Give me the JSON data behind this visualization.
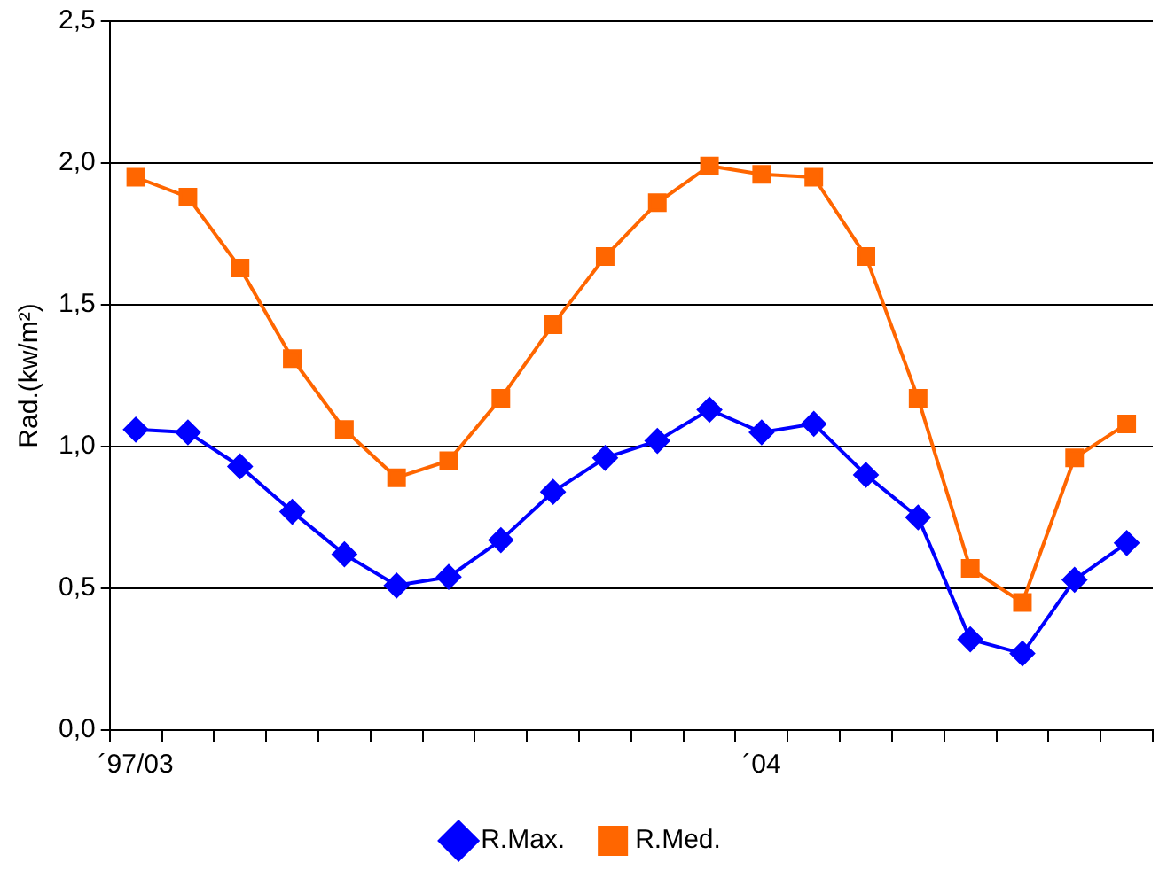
{
  "chart_data": {
    "type": "line",
    "ylabel": "Rad.(kw/m²)",
    "categories": [
      "´97/03",
      null,
      null,
      null,
      null,
      null,
      null,
      null,
      null,
      null,
      null,
      null,
      "´04",
      null,
      null,
      null,
      null,
      null,
      null,
      null
    ],
    "series": [
      {
        "name": "R.Max.",
        "color": "#0000ff",
        "marker": "diamond",
        "values": [
          1.06,
          1.05,
          0.93,
          0.77,
          0.62,
          0.51,
          0.54,
          0.67,
          0.84,
          0.96,
          1.02,
          1.13,
          1.05,
          1.08,
          0.9,
          0.75,
          0.32,
          0.27,
          0.53,
          0.66
        ]
      },
      {
        "name": "R.Med.",
        "color": "#ff6600",
        "marker": "square",
        "values": [
          1.95,
          1.88,
          1.63,
          1.31,
          1.06,
          0.89,
          0.95,
          1.17,
          1.43,
          1.67,
          1.86,
          1.99,
          1.96,
          1.95,
          1.67,
          1.17,
          0.57,
          0.45,
          0.96,
          1.08
        ]
      }
    ],
    "ylim": [
      0,
      2.5
    ],
    "yticks": [
      {
        "value": 0,
        "label": "0,0"
      },
      {
        "value": 0.5,
        "label": "0,5"
      },
      {
        "value": 1,
        "label": "1,0"
      },
      {
        "value": 1.5,
        "label": "1,5"
      },
      {
        "value": 2,
        "label": "2,0"
      },
      {
        "value": 2.5,
        "label": "2,5"
      }
    ],
    "grid": "y",
    "legend": "bottom"
  }
}
